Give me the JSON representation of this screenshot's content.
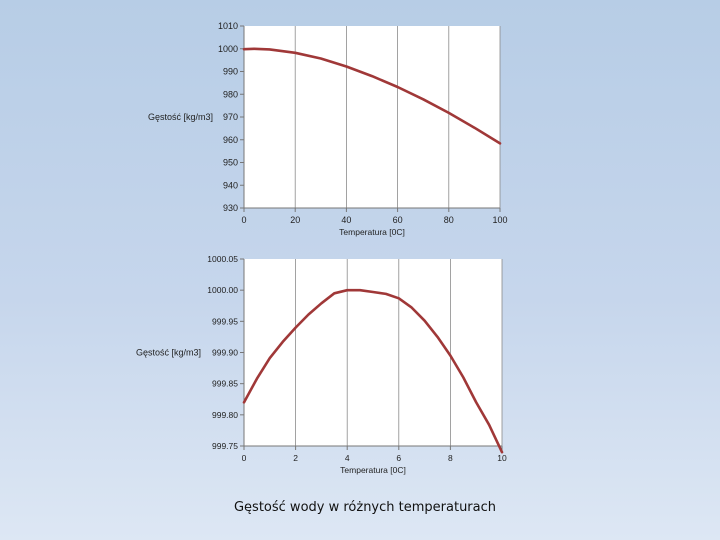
{
  "slide": {
    "caption": "Gęstość wody w różnych temperaturach",
    "background_top": "#b7cde6",
    "background_bottom": "#dde7f4"
  },
  "chart_data": [
    {
      "type": "line",
      "xlabel": "Temperatura [0C]",
      "ylabel": "Gęstość [kg/m3]",
      "xlim": [
        0,
        100
      ],
      "ylim": [
        930,
        1010
      ],
      "x_ticks": [
        0,
        20,
        40,
        60,
        80,
        100
      ],
      "y_ticks": [
        930,
        940,
        950,
        960,
        970,
        980,
        990,
        1000,
        1010
      ],
      "x_tick_labels": [
        "0",
        "20",
        "40",
        "60",
        "80",
        "100"
      ],
      "y_tick_labels": [
        "930",
        "940",
        "950",
        "960",
        "970",
        "980",
        "990",
        "1000",
        "1010"
      ],
      "grid": "vertical",
      "legend": "none",
      "line_color": "#a03838",
      "series": [
        {
          "x": [
            0,
            4,
            10,
            20,
            30,
            40,
            50,
            60,
            70,
            80,
            90,
            100
          ],
          "y": [
            999.8,
            1000.0,
            999.7,
            998.2,
            995.7,
            992.2,
            988.0,
            983.2,
            977.8,
            971.8,
            965.3,
            958.4
          ]
        }
      ]
    },
    {
      "type": "line",
      "xlabel": "Temperatura [0C]",
      "ylabel": "Gęstość [kg/m3]",
      "xlim": [
        0,
        10
      ],
      "ylim": [
        999.75,
        1000.05
      ],
      "x_ticks": [
        0,
        2,
        4,
        6,
        8,
        10
      ],
      "y_ticks": [
        999.75,
        999.8,
        999.85,
        999.9,
        999.95,
        1000.0,
        1000.05
      ],
      "x_tick_labels": [
        "0",
        "2",
        "4",
        "6",
        "8",
        "10"
      ],
      "y_tick_labels": [
        "999.75",
        "999.80",
        "999.85",
        "999.90",
        "999.95",
        "1000.00",
        "1000.05"
      ],
      "grid": "vertical",
      "legend": "none",
      "line_color": "#a03838",
      "series": [
        {
          "x": [
            0,
            0.5,
            1,
            1.5,
            2,
            2.5,
            3,
            3.5,
            4,
            4.5,
            5,
            5.5,
            6,
            6.5,
            7,
            7.5,
            8,
            8.5,
            9,
            9.5,
            10
          ],
          "y": [
            999.82,
            999.858,
            999.891,
            999.917,
            999.94,
            999.961,
            999.979,
            999.995,
            1000.0,
            1000.0,
            999.997,
            999.994,
            999.987,
            999.972,
            999.951,
            999.925,
            999.895,
            999.86,
            999.82,
            999.784,
            999.74
          ]
        }
      ]
    }
  ]
}
